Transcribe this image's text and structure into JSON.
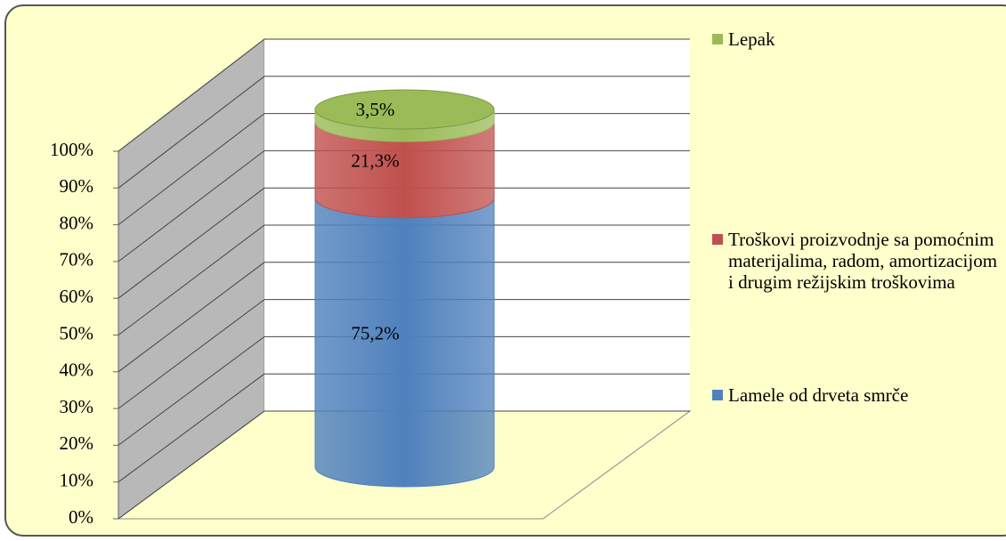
{
  "chart_data": {
    "type": "stacked-cylinder",
    "categories": [
      null
    ],
    "series": [
      {
        "name": "Lamele od drveta smrče",
        "color": "#4f81bd",
        "values": [
          75.2
        ],
        "value_labels": [
          "75,2%"
        ]
      },
      {
        "name": "Troškovi proizvodnje sa pomoćnim materijalima, radom, amortizacijom i drugim režijskim troškovima",
        "color": "#c0504d",
        "values": [
          21.3
        ],
        "value_labels": [
          "21,3%"
        ]
      },
      {
        "name": "Lepak",
        "color": "#9bbb59",
        "values": [
          3.5
        ],
        "value_labels": [
          "3,5%"
        ]
      }
    ],
    "ylim": [
      0,
      100
    ],
    "yticks": [
      {
        "value": 0,
        "label": "0%"
      },
      {
        "value": 10,
        "label": "10%"
      },
      {
        "value": 20,
        "label": "20%"
      },
      {
        "value": 30,
        "label": "30%"
      },
      {
        "value": 40,
        "label": "40%"
      },
      {
        "value": 50,
        "label": "50%"
      },
      {
        "value": 60,
        "label": "60%"
      },
      {
        "value": 70,
        "label": "70%"
      },
      {
        "value": 80,
        "label": "80%"
      },
      {
        "value": 90,
        "label": "90%"
      },
      {
        "value": 100,
        "label": "100%"
      }
    ],
    "grid": true,
    "legend": "right"
  }
}
